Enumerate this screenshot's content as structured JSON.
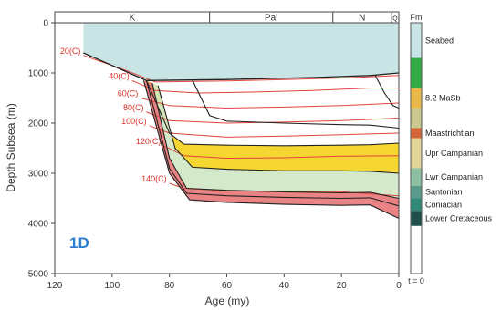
{
  "chart_data": {
    "type": "area",
    "panel_label": "1D",
    "xlabel": "Age (my)",
    "ylabel": "Depth Subsea (m)",
    "xlim": [
      120,
      0
    ],
    "ylim": [
      0,
      5000
    ],
    "x_ticks": [
      120,
      100,
      80,
      60,
      40,
      20,
      0
    ],
    "y_ticks": [
      0,
      1000,
      2000,
      3000,
      4000,
      5000
    ],
    "periods": [
      {
        "label": "K",
        "start": 120,
        "end": 66
      },
      {
        "label": "Pal",
        "start": 66,
        "end": 23
      },
      {
        "label": "N",
        "start": 23,
        "end": 2.6
      },
      {
        "label": "Q",
        "start": 2.6,
        "end": 0
      }
    ],
    "colors": {
      "seawater": "#c9e4e4",
      "upper_campanian_band": "#f5d21b",
      "lower_campanian_band": "#cfe6c4",
      "santonian_coniacian_band": "#e87575",
      "burial_line": "#222222",
      "isotherm": "#e0453a",
      "isotherm_label": "#d9332b",
      "panel_label": "#2b7fd1"
    },
    "seabed": [
      [
        110,
        600
      ],
      [
        88,
        1150
      ],
      [
        60,
        1130
      ],
      [
        30,
        1090
      ],
      [
        10,
        1050
      ],
      [
        0,
        1000
      ]
    ],
    "burial_curves": [
      {
        "name": "Upr Campanian top",
        "points": [
          [
            88,
            1150
          ],
          [
            80,
            2200
          ],
          [
            75,
            2420
          ],
          [
            60,
            2440
          ],
          [
            40,
            2450
          ],
          [
            20,
            2440
          ],
          [
            10,
            2430
          ],
          [
            0,
            2400
          ]
        ]
      },
      {
        "name": "Lwr Campanian top",
        "points": [
          [
            84,
            1250
          ],
          [
            78,
            2500
          ],
          [
            72,
            2880
          ],
          [
            60,
            2920
          ],
          [
            40,
            2950
          ],
          [
            20,
            2950
          ],
          [
            10,
            2960
          ],
          [
            0,
            3000
          ]
        ]
      },
      {
        "name": "Santonian top",
        "points": [
          [
            86,
            1200
          ],
          [
            80,
            2700
          ],
          [
            74,
            3300
          ],
          [
            60,
            3340
          ],
          [
            40,
            3370
          ],
          [
            20,
            3390
          ],
          [
            10,
            3380
          ],
          [
            0,
            3500
          ]
        ]
      },
      {
        "name": "Coniacian top",
        "points": [
          [
            88,
            1150
          ],
          [
            80,
            2900
          ],
          [
            74,
            3400
          ],
          [
            60,
            3450
          ],
          [
            40,
            3480
          ],
          [
            20,
            3500
          ],
          [
            10,
            3490
          ],
          [
            0,
            3650
          ]
        ]
      },
      {
        "name": "Lower Cretaceous top",
        "points": [
          [
            89,
            1150
          ],
          [
            80,
            3000
          ],
          [
            73,
            3530
          ],
          [
            60,
            3580
          ],
          [
            40,
            3620
          ],
          [
            20,
            3640
          ],
          [
            10,
            3630
          ],
          [
            0,
            3900
          ]
        ]
      },
      {
        "name": "Maastrichtian base",
        "points": [
          [
            72,
            1140
          ],
          [
            66,
            1850
          ],
          [
            60,
            1960
          ],
          [
            40,
            2000
          ],
          [
            20,
            2030
          ],
          [
            10,
            2040
          ],
          [
            0,
            2100
          ]
        ]
      },
      {
        "name": "8.2 MaSb",
        "points": [
          [
            8.2,
            1050
          ],
          [
            5,
            1400
          ],
          [
            2,
            1650
          ],
          [
            0,
            1700
          ]
        ]
      }
    ],
    "isotherms": [
      {
        "label": "20(C)",
        "points": [
          [
            110,
            650
          ],
          [
            95,
            950
          ],
          [
            85,
            1180
          ],
          [
            60,
            1160
          ],
          [
            40,
            1130
          ],
          [
            20,
            1100
          ],
          [
            0,
            1050
          ]
        ]
      },
      {
        "label": "40(C)",
        "points": [
          [
            93,
            1150
          ],
          [
            85,
            1350
          ],
          [
            70,
            1400
          ],
          [
            50,
            1380
          ],
          [
            30,
            1350
          ],
          [
            10,
            1300
          ],
          [
            0,
            1300
          ]
        ]
      },
      {
        "label": "60(C)",
        "points": [
          [
            90,
            1500
          ],
          [
            80,
            1650
          ],
          [
            60,
            1700
          ],
          [
            40,
            1680
          ],
          [
            20,
            1650
          ],
          [
            0,
            1600
          ]
        ]
      },
      {
        "label": "80(C)",
        "points": [
          [
            88,
            1780
          ],
          [
            80,
            1950
          ],
          [
            60,
            2000
          ],
          [
            40,
            1980
          ],
          [
            20,
            1950
          ],
          [
            0,
            1900
          ]
        ]
      },
      {
        "label": "100(C)",
        "points": [
          [
            87,
            2050
          ],
          [
            80,
            2200
          ],
          [
            60,
            2280
          ],
          [
            40,
            2260
          ],
          [
            20,
            2230
          ],
          [
            0,
            2200
          ]
        ]
      },
      {
        "label": "120(C)",
        "points": [
          [
            82,
            2450
          ],
          [
            75,
            2650
          ],
          [
            60,
            2700
          ],
          [
            40,
            2690
          ],
          [
            20,
            2660
          ],
          [
            0,
            2650
          ]
        ]
      },
      {
        "label": "140(C)",
        "points": [
          [
            80,
            3200
          ],
          [
            75,
            3300
          ],
          [
            60,
            3350
          ],
          [
            40,
            3360
          ],
          [
            20,
            3370
          ],
          [
            0,
            3450
          ]
        ]
      }
    ],
    "formation_column": {
      "header": "Fm",
      "footer": "t = 0",
      "entries": [
        {
          "label": "Seabed",
          "top": 0,
          "bottom": 700,
          "color": "#c9e4e4"
        },
        {
          "label": "",
          "top": 700,
          "bottom": 1300,
          "color": "#33aa44"
        },
        {
          "label": "8.2 MaSb",
          "top": 1300,
          "bottom": 1700,
          "color": "#e8b84a"
        },
        {
          "label": "",
          "top": 1700,
          "bottom": 2100,
          "color": "#c8c890"
        },
        {
          "label": "Maastrichtian",
          "top": 2100,
          "bottom": 2300,
          "color": "#d4663a"
        },
        {
          "label": "Upr Campanian",
          "top": 2300,
          "bottom": 2900,
          "color": "#e4d49a"
        },
        {
          "label": "Lwr Campanian",
          "top": 2900,
          "bottom": 3250,
          "color": "#8cc0a0"
        },
        {
          "label": "Santonian",
          "top": 3250,
          "bottom": 3500,
          "color": "#5a9a8a"
        },
        {
          "label": "Coniacian",
          "top": 3500,
          "bottom": 3750,
          "color": "#2f8a7a"
        },
        {
          "label": "Lower Cretaceous",
          "top": 3750,
          "bottom": 4050,
          "color": "#1f4f4a"
        }
      ]
    }
  }
}
